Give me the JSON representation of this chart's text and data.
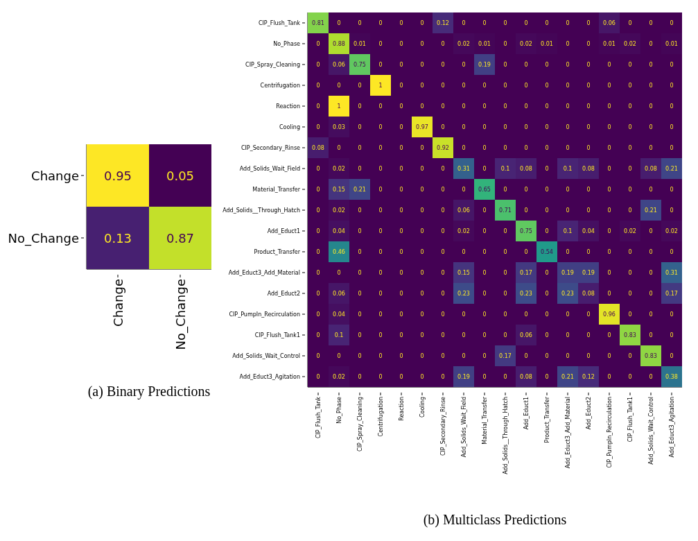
{
  "chart_data": [
    {
      "type": "heatmap",
      "title": "(a) Binary Predictions",
      "categories": [
        "Change",
        "No_Change"
      ],
      "y_categories": [
        "Change",
        "No_Change"
      ],
      "data_labels": true,
      "cells": [
        [
          0.95,
          0.05
        ],
        [
          0.13,
          0.87
        ]
      ]
    },
    {
      "type": "heatmap",
      "title": "(b) Multiclass Predictions",
      "data_labels": true,
      "categories": [
        "CIP_Flush_Tank",
        "No_Phase",
        "CIP_Spray_Cleaning",
        "Centrifugation",
        "Reaction",
        "Cooling",
        "CIP_Secondary_Rinse",
        "Add_Solids_Wait_Field",
        "Material_Transfer",
        "Add_Solids__Through_Hatch",
        "Add_Educt1",
        "Product_Transfer",
        "Add_Educt3_Add_Material",
        "Add_Educt2",
        "CIP_PumpIn_Recirculation",
        "CIP_Flush_Tank1",
        "Add_Solids_Wait_Control",
        "Add_Educt3_Agitation"
      ],
      "y_categories": [
        "CIP_Flush_Tank",
        "No_Phase",
        "CIP_Spray_Cleaning",
        "Centrifugation",
        "Reaction",
        "Cooling",
        "CIP_Secondary_Rinse",
        "Add_Solids_Wait_Field",
        "Material_Transfer",
        "Add_Solids__Through_Hatch",
        "Add_Educt1",
        "Product_Transfer",
        "Add_Educt3_Add_Material",
        "Add_Educt2",
        "CIP_PumpIn_Recirculation",
        "CIP_Flush_Tank1",
        "Add_Solids_Wait_Control",
        "Add_Educt3_Agitation"
      ],
      "cells": [
        [
          0.81,
          0,
          0,
          0,
          0,
          0,
          0.12,
          0,
          0,
          0,
          0,
          0,
          0,
          0,
          0.06,
          0,
          0,
          0
        ],
        [
          0,
          0.88,
          0.01,
          0,
          0,
          0,
          0,
          0.02,
          0.01,
          0,
          0.02,
          0.01,
          0,
          0,
          0.01,
          0.02,
          0,
          0.01
        ],
        [
          0,
          0.06,
          0.75,
          0,
          0,
          0,
          0,
          0,
          0.19,
          0,
          0,
          0,
          0,
          0,
          0,
          0,
          0,
          0
        ],
        [
          0,
          0,
          0,
          1,
          0,
          0,
          0,
          0,
          0,
          0,
          0,
          0,
          0,
          0,
          0,
          0,
          0,
          0
        ],
        [
          0,
          1,
          0,
          0,
          0,
          0,
          0,
          0,
          0,
          0,
          0,
          0,
          0,
          0,
          0,
          0,
          0,
          0
        ],
        [
          0,
          0.03,
          0,
          0,
          0,
          0.97,
          0,
          0,
          0,
          0,
          0,
          0,
          0,
          0,
          0,
          0,
          0,
          0
        ],
        [
          0.08,
          0,
          0,
          0,
          0,
          0,
          0.92,
          0,
          0,
          0,
          0,
          0,
          0,
          0,
          0,
          0,
          0,
          0
        ],
        [
          0,
          0.02,
          0,
          0,
          0,
          0,
          0,
          0.31,
          0,
          0.1,
          0.08,
          0,
          0.1,
          0.08,
          0,
          0,
          0.08,
          0.21
        ],
        [
          0,
          0.15,
          0.21,
          0,
          0,
          0,
          0,
          0,
          0.65,
          0,
          0,
          0,
          0,
          0,
          0,
          0,
          0,
          0
        ],
        [
          0,
          0.02,
          0,
          0,
          0,
          0,
          0,
          0.06,
          0,
          0.71,
          0,
          0,
          0,
          0,
          0,
          0,
          0.21,
          0
        ],
        [
          0,
          0.04,
          0,
          0,
          0,
          0,
          0,
          0.02,
          0,
          0,
          0.75,
          0,
          0.1,
          0.04,
          0,
          0.02,
          0,
          0.02
        ],
        [
          0,
          0.46,
          0,
          0,
          0,
          0,
          0,
          0,
          0,
          0,
          0,
          0.54,
          0,
          0,
          0,
          0,
          0,
          0
        ],
        [
          0,
          0,
          0,
          0,
          0,
          0,
          0,
          0.15,
          0,
          0,
          0.17,
          0,
          0.19,
          0.19,
          0,
          0,
          0,
          0.31
        ],
        [
          0,
          0.06,
          0,
          0,
          0,
          0,
          0,
          0.23,
          0,
          0,
          0.23,
          0,
          0.23,
          0.08,
          0,
          0,
          0,
          0.17
        ],
        [
          0,
          0.04,
          0,
          0,
          0,
          0,
          0,
          0,
          0,
          0,
          0,
          0,
          0,
          0,
          0.96,
          0,
          0,
          0
        ],
        [
          0,
          0.1,
          0,
          0,
          0,
          0,
          0,
          0,
          0,
          0,
          0.06,
          0,
          0,
          0,
          0,
          0.83,
          0,
          0
        ],
        [
          0,
          0,
          0,
          0,
          0,
          0,
          0,
          0,
          0,
          0.17,
          0,
          0,
          0,
          0,
          0,
          0,
          0.83,
          0
        ],
        [
          0,
          0.02,
          0,
          0,
          0,
          0,
          0,
          0.19,
          0,
          0,
          0.08,
          0,
          0.21,
          0.12,
          0,
          0,
          0,
          0.38
        ]
      ]
    }
  ]
}
